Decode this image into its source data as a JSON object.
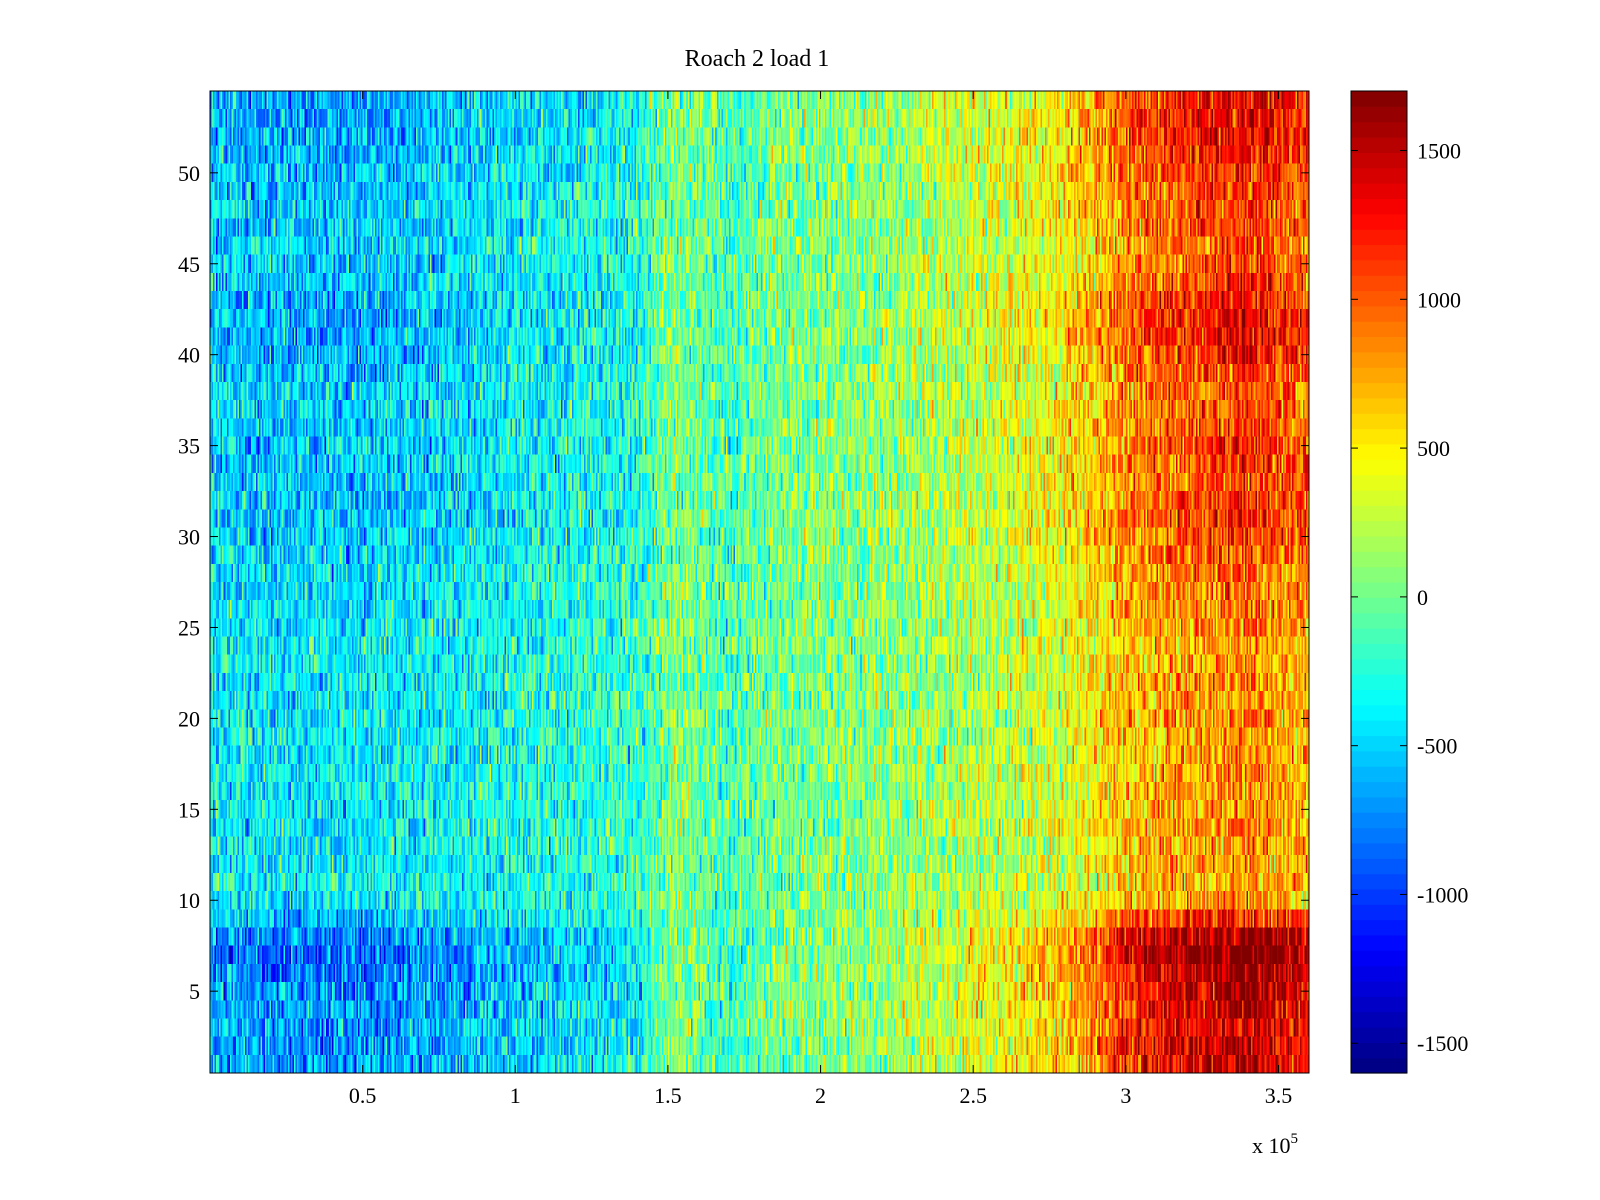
{
  "chart_data": {
    "type": "heatmap",
    "title": "Roach 2 load 1",
    "xlabel": "",
    "ylabel": "",
    "x_multiplier_label": "x 10",
    "x_multiplier_exponent": "5",
    "xlim": [
      0,
      360000
    ],
    "ylim": [
      0.5,
      54.5
    ],
    "rows": 54,
    "x_ticks": [
      {
        "value": 50000,
        "label": "0.5"
      },
      {
        "value": 100000,
        "label": "1"
      },
      {
        "value": 150000,
        "label": "1.5"
      },
      {
        "value": 200000,
        "label": "2"
      },
      {
        "value": 250000,
        "label": "2.5"
      },
      {
        "value": 300000,
        "label": "3"
      },
      {
        "value": 350000,
        "label": "3.5"
      }
    ],
    "y_ticks": [
      {
        "value": 5,
        "label": "5"
      },
      {
        "value": 10,
        "label": "10"
      },
      {
        "value": 15,
        "label": "15"
      },
      {
        "value": 20,
        "label": "20"
      },
      {
        "value": 25,
        "label": "25"
      },
      {
        "value": 30,
        "label": "30"
      },
      {
        "value": 35,
        "label": "35"
      },
      {
        "value": 40,
        "label": "40"
      },
      {
        "value": 45,
        "label": "45"
      },
      {
        "value": 50,
        "label": "50"
      }
    ],
    "colorbar": {
      "colormap": "jet",
      "clim": [
        -1600,
        1700
      ],
      "ticks": [
        {
          "value": -1500,
          "label": "-1500"
        },
        {
          "value": -1000,
          "label": "-1000"
        },
        {
          "value": -500,
          "label": "-500"
        },
        {
          "value": 0,
          "label": "0"
        },
        {
          "value": 500,
          "label": "500"
        },
        {
          "value": 1000,
          "label": "1000"
        },
        {
          "value": 1500,
          "label": "1500"
        }
      ]
    },
    "column_trend": {
      "x": [
        0,
        20000,
        40000,
        60000,
        80000,
        100000,
        120000,
        140000,
        150000,
        160000,
        170000,
        180000,
        200000,
        220000,
        240000,
        260000,
        280000,
        290000,
        300000,
        310000,
        320000,
        330000,
        340000,
        350000,
        360000
      ],
      "mean_value": [
        -450,
        -500,
        -500,
        -480,
        -420,
        -350,
        -300,
        -250,
        50,
        0,
        -150,
        0,
        50,
        100,
        200,
        300,
        450,
        600,
        800,
        900,
        950,
        1000,
        1100,
        950,
        900
      ]
    },
    "row_effect": {
      "rows": [
        1,
        2,
        3,
        4,
        5,
        6,
        7,
        8,
        9,
        10,
        11,
        12,
        13,
        14,
        15,
        16,
        17,
        18,
        19,
        20,
        21,
        22,
        23,
        24,
        25,
        26,
        27,
        28,
        29,
        30,
        31,
        32,
        33,
        34,
        35,
        36,
        37,
        38,
        39,
        40,
        41,
        42,
        43,
        44,
        45,
        46,
        47,
        48,
        49,
        50,
        51,
        52,
        53,
        54
      ],
      "amplitude": [
        1.4,
        1.5,
        1.4,
        1.45,
        1.5,
        1.6,
        1.7,
        1.6,
        1.2,
        0.8,
        0.75,
        0.8,
        0.8,
        0.85,
        0.8,
        0.8,
        0.8,
        0.8,
        0.8,
        0.85,
        0.8,
        0.8,
        0.8,
        0.8,
        0.85,
        0.85,
        0.9,
        0.9,
        1.0,
        1.1,
        1.15,
        1.1,
        1.05,
        1.1,
        1.1,
        1.05,
        1.05,
        1.0,
        1.1,
        1.2,
        1.25,
        1.3,
        1.2,
        1.1,
        1.05,
        1.0,
        1.05,
        1.05,
        1.1,
        1.15,
        1.25,
        1.3,
        1.3,
        1.25
      ]
    }
  }
}
